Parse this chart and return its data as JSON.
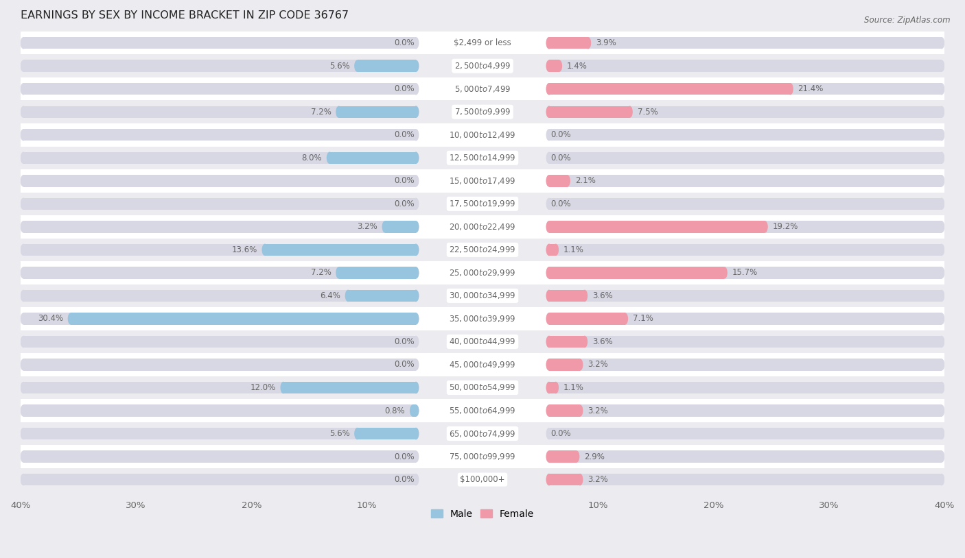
{
  "title": "EARNINGS BY SEX BY INCOME BRACKET IN ZIP CODE 36767",
  "source": "Source: ZipAtlas.com",
  "categories": [
    "$2,499 or less",
    "$2,500 to $4,999",
    "$5,000 to $7,499",
    "$7,500 to $9,999",
    "$10,000 to $12,499",
    "$12,500 to $14,999",
    "$15,000 to $17,499",
    "$17,500 to $19,999",
    "$20,000 to $22,499",
    "$22,500 to $24,999",
    "$25,000 to $29,999",
    "$30,000 to $34,999",
    "$35,000 to $39,999",
    "$40,000 to $44,999",
    "$45,000 to $49,999",
    "$50,000 to $54,999",
    "$55,000 to $64,999",
    "$65,000 to $74,999",
    "$75,000 to $99,999",
    "$100,000+"
  ],
  "male_values": [
    0.0,
    5.6,
    0.0,
    7.2,
    0.0,
    8.0,
    0.0,
    0.0,
    3.2,
    13.6,
    7.2,
    6.4,
    30.4,
    0.0,
    0.0,
    12.0,
    0.8,
    5.6,
    0.0,
    0.0
  ],
  "female_values": [
    3.9,
    1.4,
    21.4,
    7.5,
    0.0,
    0.0,
    2.1,
    0.0,
    19.2,
    1.1,
    15.7,
    3.6,
    7.1,
    3.6,
    3.2,
    1.1,
    3.2,
    0.0,
    2.9,
    3.2
  ],
  "male_color": "#97C5E0",
  "female_color": "#F099A8",
  "label_color": "#666666",
  "bg_color": "#EBEBF0",
  "row_color_even": "#FFFFFF",
  "row_color_odd": "#EBEBF0",
  "bar_bg_color": "#D8D8E4",
  "xlim": 40.0,
  "bar_height": 0.52,
  "title_fontsize": 11.5,
  "label_fontsize": 8.5,
  "tick_fontsize": 9.5,
  "val_fontsize": 8.5
}
